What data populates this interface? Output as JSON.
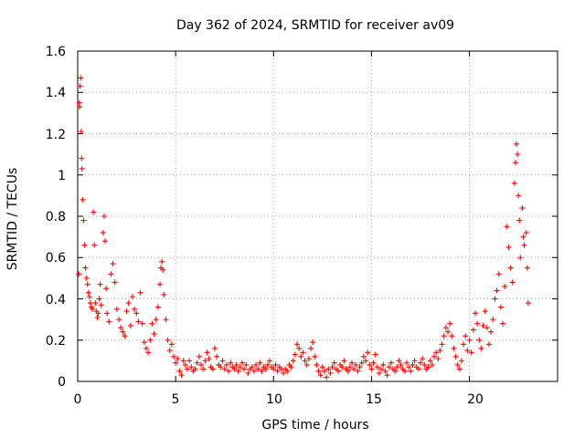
{
  "chart_data": {
    "type": "scatter",
    "title": "Day 362 of 2024, SRMTID for receiver av09",
    "xlabel": "GPS time / hours",
    "ylabel": "SRMTID / TECUs",
    "xlim": [
      0,
      24.5
    ],
    "ylim": [
      0,
      1.6
    ],
    "xticks": [
      0,
      5,
      10,
      15,
      20
    ],
    "yticks": [
      0,
      0.2,
      0.4,
      0.6,
      0.8,
      1,
      1.2,
      1.4,
      1.6
    ],
    "xtick_labels": [
      "0",
      "5",
      "10",
      "15",
      "20"
    ],
    "ytick_labels": [
      "0",
      "0.2",
      "0.4",
      "0.6",
      "0.8",
      "1",
      "1.2",
      "1.4",
      "1.6"
    ],
    "grid": true,
    "marker": "+",
    "color": "#ff0000",
    "series": [
      {
        "name": "SRMTID",
        "points": [
          [
            0.05,
            0.52
          ],
          [
            0.08,
            1.35
          ],
          [
            0.1,
            1.33
          ],
          [
            0.12,
            1.43
          ],
          [
            0.15,
            1.47
          ],
          [
            0.18,
            1.21
          ],
          [
            0.2,
            1.08
          ],
          [
            0.22,
            1.03
          ],
          [
            0.25,
            0.88
          ],
          [
            0.3,
            0.78
          ],
          [
            0.35,
            0.66
          ],
          [
            0.4,
            0.55
          ],
          [
            0.45,
            0.5
          ],
          [
            0.5,
            0.47
          ],
          [
            0.55,
            0.43
          ],
          [
            0.6,
            0.41
          ],
          [
            0.65,
            0.38
          ],
          [
            0.7,
            0.36
          ],
          [
            0.75,
            0.35
          ],
          [
            0.8,
            0.82
          ],
          [
            0.85,
            0.66
          ],
          [
            0.9,
            0.38
          ],
          [
            0.95,
            0.34
          ],
          [
            1.0,
            0.31
          ],
          [
            1.05,
            0.33
          ],
          [
            1.1,
            0.4
          ],
          [
            1.15,
            0.47
          ],
          [
            1.2,
            0.37
          ],
          [
            1.3,
            0.72
          ],
          [
            1.35,
            0.8
          ],
          [
            1.4,
            0.68
          ],
          [
            1.45,
            0.45
          ],
          [
            1.5,
            0.33
          ],
          [
            1.6,
            0.29
          ],
          [
            1.7,
            0.52
          ],
          [
            1.8,
            0.57
          ],
          [
            1.9,
            0.48
          ],
          [
            2.0,
            0.35
          ],
          [
            2.1,
            0.3
          ],
          [
            2.2,
            0.26
          ],
          [
            2.3,
            0.24
          ],
          [
            2.4,
            0.22
          ],
          [
            2.5,
            0.34
          ],
          [
            2.6,
            0.38
          ],
          [
            2.7,
            0.27
          ],
          [
            2.8,
            0.41
          ],
          [
            2.9,
            0.35
          ],
          [
            3.0,
            0.33
          ],
          [
            3.1,
            0.29
          ],
          [
            3.2,
            0.43
          ],
          [
            3.3,
            0.28
          ],
          [
            3.4,
            0.19
          ],
          [
            3.5,
            0.16
          ],
          [
            3.6,
            0.14
          ],
          [
            3.7,
            0.2
          ],
          [
            3.8,
            0.28
          ],
          [
            3.9,
            0.23
          ],
          [
            4.0,
            0.3
          ],
          [
            4.1,
            0.36
          ],
          [
            4.2,
            0.47
          ],
          [
            4.25,
            0.55
          ],
          [
            4.3,
            0.58
          ],
          [
            4.35,
            0.54
          ],
          [
            4.4,
            0.42
          ],
          [
            4.5,
            0.3
          ],
          [
            4.6,
            0.2
          ],
          [
            4.7,
            0.15
          ],
          [
            4.8,
            0.18
          ],
          [
            4.9,
            0.12
          ],
          [
            5.0,
            0.09
          ],
          [
            5.1,
            0.11
          ],
          [
            5.2,
            0.05
          ],
          [
            5.3,
            0.03
          ],
          [
            5.4,
            0.1
          ],
          [
            5.5,
            0.08
          ],
          [
            5.6,
            0.06
          ],
          [
            5.7,
            0.1
          ],
          [
            5.8,
            0.07
          ],
          [
            5.9,
            0.05
          ],
          [
            6.0,
            0.06
          ],
          [
            6.1,
            0.09
          ],
          [
            6.2,
            0.12
          ],
          [
            6.3,
            0.08
          ],
          [
            6.4,
            0.06
          ],
          [
            6.5,
            0.1
          ],
          [
            6.6,
            0.14
          ],
          [
            6.7,
            0.11
          ],
          [
            6.8,
            0.07
          ],
          [
            6.9,
            0.06
          ],
          [
            7.0,
            0.16
          ],
          [
            7.1,
            0.12
          ],
          [
            7.2,
            0.08
          ],
          [
            7.3,
            0.07
          ],
          [
            7.4,
            0.1
          ],
          [
            7.5,
            0.06
          ],
          [
            7.6,
            0.08
          ],
          [
            7.7,
            0.05
          ],
          [
            7.8,
            0.09
          ],
          [
            7.9,
            0.07
          ],
          [
            8.0,
            0.06
          ],
          [
            8.1,
            0.08
          ],
          [
            8.2,
            0.05
          ],
          [
            8.3,
            0.07
          ],
          [
            8.4,
            0.09
          ],
          [
            8.5,
            0.06
          ],
          [
            8.6,
            0.08
          ],
          [
            8.7,
            0.04
          ],
          [
            8.8,
            0.06
          ],
          [
            8.9,
            0.07
          ],
          [
            9.0,
            0.05
          ],
          [
            9.1,
            0.08
          ],
          [
            9.2,
            0.06
          ],
          [
            9.3,
            0.09
          ],
          [
            9.4,
            0.05
          ],
          [
            9.5,
            0.07
          ],
          [
            9.6,
            0.06
          ],
          [
            9.7,
            0.08
          ],
          [
            9.8,
            0.1
          ],
          [
            9.9,
            0.07
          ],
          [
            10.0,
            0.06
          ],
          [
            10.1,
            0.08
          ],
          [
            10.2,
            0.05
          ],
          [
            10.3,
            0.07
          ],
          [
            10.4,
            0.06
          ],
          [
            10.5,
            0.04
          ],
          [
            10.6,
            0.06
          ],
          [
            10.7,
            0.05
          ],
          [
            10.8,
            0.08
          ],
          [
            10.9,
            0.07
          ],
          [
            11.0,
            0.1
          ],
          [
            11.1,
            0.13
          ],
          [
            11.2,
            0.18
          ],
          [
            11.3,
            0.16
          ],
          [
            11.4,
            0.12
          ],
          [
            11.5,
            0.14
          ],
          [
            11.6,
            0.1
          ],
          [
            11.7,
            0.08
          ],
          [
            11.8,
            0.11
          ],
          [
            11.9,
            0.16
          ],
          [
            12.0,
            0.19
          ],
          [
            12.1,
            0.12
          ],
          [
            12.2,
            0.08
          ],
          [
            12.3,
            0.05
          ],
          [
            12.4,
            0.03
          ],
          [
            12.5,
            0.07
          ],
          [
            12.6,
            0.05
          ],
          [
            12.7,
            0.02
          ],
          [
            12.8,
            0.06
          ],
          [
            12.9,
            0.04
          ],
          [
            13.0,
            0.07
          ],
          [
            13.1,
            0.09
          ],
          [
            13.2,
            0.06
          ],
          [
            13.3,
            0.05
          ],
          [
            13.4,
            0.08
          ],
          [
            13.5,
            0.07
          ],
          [
            13.6,
            0.1
          ],
          [
            13.7,
            0.06
          ],
          [
            13.8,
            0.05
          ],
          [
            13.9,
            0.07
          ],
          [
            14.0,
            0.09
          ],
          [
            14.1,
            0.06
          ],
          [
            14.2,
            0.08
          ],
          [
            14.3,
            0.05
          ],
          [
            14.4,
            0.07
          ],
          [
            14.5,
            0.09
          ],
          [
            14.6,
            0.12
          ],
          [
            14.7,
            0.1
          ],
          [
            14.8,
            0.14
          ],
          [
            14.9,
            0.08
          ],
          [
            15.0,
            0.06
          ],
          [
            15.1,
            0.09
          ],
          [
            15.2,
            0.13
          ],
          [
            15.3,
            0.07
          ],
          [
            15.4,
            0.04
          ],
          [
            15.5,
            0.06
          ],
          [
            15.6,
            0.08
          ],
          [
            15.7,
            0.05
          ],
          [
            15.8,
            0.03
          ],
          [
            15.9,
            0.07
          ],
          [
            16.0,
            0.09
          ],
          [
            16.1,
            0.06
          ],
          [
            16.2,
            0.05
          ],
          [
            16.3,
            0.07
          ],
          [
            16.4,
            0.1
          ],
          [
            16.5,
            0.08
          ],
          [
            16.6,
            0.06
          ],
          [
            16.7,
            0.05
          ],
          [
            16.8,
            0.09
          ],
          [
            16.9,
            0.07
          ],
          [
            17.0,
            0.05
          ],
          [
            17.1,
            0.08
          ],
          [
            17.2,
            0.1
          ],
          [
            17.3,
            0.07
          ],
          [
            17.4,
            0.06
          ],
          [
            17.5,
            0.09
          ],
          [
            17.6,
            0.11
          ],
          [
            17.7,
            0.08
          ],
          [
            17.8,
            0.06
          ],
          [
            17.9,
            0.07
          ],
          [
            18.0,
            0.1
          ],
          [
            18.1,
            0.08
          ],
          [
            18.2,
            0.12
          ],
          [
            18.3,
            0.14
          ],
          [
            18.4,
            0.11
          ],
          [
            18.5,
            0.15
          ],
          [
            18.6,
            0.18
          ],
          [
            18.7,
            0.22
          ],
          [
            18.8,
            0.26
          ],
          [
            18.9,
            0.24
          ],
          [
            19.0,
            0.28
          ],
          [
            19.1,
            0.22
          ],
          [
            19.2,
            0.16
          ],
          [
            19.3,
            0.12
          ],
          [
            19.4,
            0.08
          ],
          [
            19.5,
            0.06
          ],
          [
            19.6,
            0.1
          ],
          [
            19.7,
            0.18
          ],
          [
            19.8,
            0.22
          ],
          [
            19.9,
            0.15
          ],
          [
            20.0,
            0.2
          ],
          [
            20.1,
            0.14
          ],
          [
            20.2,
            0.25
          ],
          [
            20.3,
            0.33
          ],
          [
            20.4,
            0.28
          ],
          [
            20.5,
            0.2
          ],
          [
            20.6,
            0.16
          ],
          [
            20.7,
            0.27
          ],
          [
            20.8,
            0.34
          ],
          [
            20.9,
            0.26
          ],
          [
            21.0,
            0.18
          ],
          [
            21.1,
            0.24
          ],
          [
            21.2,
            0.3
          ],
          [
            21.3,
            0.4
          ],
          [
            21.4,
            0.44
          ],
          [
            21.5,
            0.52
          ],
          [
            21.6,
            0.36
          ],
          [
            21.7,
            0.28
          ],
          [
            21.8,
            0.46
          ],
          [
            21.9,
            0.75
          ],
          [
            22.0,
            0.65
          ],
          [
            22.1,
            0.55
          ],
          [
            22.2,
            0.48
          ],
          [
            22.3,
            0.96
          ],
          [
            22.35,
            1.06
          ],
          [
            22.4,
            1.15
          ],
          [
            22.45,
            1.1
          ],
          [
            22.5,
            0.9
          ],
          [
            22.55,
            0.78
          ],
          [
            22.6,
            0.6
          ],
          [
            22.7,
            0.84
          ],
          [
            22.75,
            0.7
          ],
          [
            22.8,
            0.66
          ],
          [
            22.9,
            0.72
          ],
          [
            22.95,
            0.55
          ],
          [
            23.0,
            0.38
          ]
        ]
      }
    ]
  }
}
